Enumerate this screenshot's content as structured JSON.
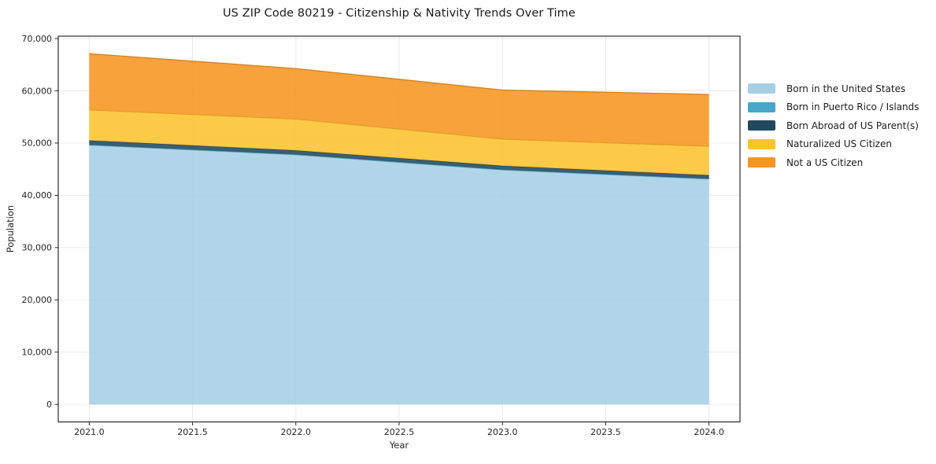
{
  "figure": {
    "background": "#ffffff",
    "text_color": "#262626"
  },
  "chart_data": {
    "type": "area",
    "stacked": true,
    "title": "US ZIP Code 80219 - Citizenship & Nativity Trends Over Time",
    "xlabel": "Year",
    "ylabel": "Population",
    "x": [
      2021,
      2022,
      2023,
      2024
    ],
    "series": [
      {
        "name": "Born in the United States",
        "color": "#a6cfe5",
        "values": [
          49600,
          47750,
          44850,
          43100
        ]
      },
      {
        "name": "Born in Puerto Rico / Islands",
        "color": "#46a7c8",
        "values": [
          100,
          100,
          100,
          100
        ]
      },
      {
        "name": "Born Abroad of US Parent(s)",
        "color": "#21495e",
        "values": [
          800,
          750,
          700,
          650
        ]
      },
      {
        "name": "Naturalized US Citizen",
        "color": "#fcc32d",
        "values": [
          5850,
          6000,
          5100,
          5550
        ]
      },
      {
        "name": "Not a US Citizen",
        "color": "#f79521",
        "values": [
          10750,
          9650,
          9400,
          9900
        ]
      }
    ],
    "totals": [
      67100,
      64250,
      60150,
      59300
    ],
    "xlim": [
      2020.85,
      2024.15
    ],
    "ylim": [
      -3355,
      70455
    ],
    "xticks": {
      "values": [
        2021.0,
        2021.5,
        2022.0,
        2022.5,
        2023.0,
        2023.5,
        2024.0
      ],
      "labels": [
        "2021.0",
        "2021.5",
        "2022.0",
        "2022.5",
        "2023.0",
        "2023.5",
        "2024.0"
      ]
    },
    "yticks": {
      "values": [
        0,
        10000,
        20000,
        30000,
        40000,
        50000,
        60000,
        70000
      ],
      "labels": [
        "0",
        "10,000",
        "20,000",
        "30,000",
        "40,000",
        "50,000",
        "60,000",
        "70,000"
      ]
    },
    "grid": true,
    "grid_color": "#e7e7e7",
    "legend_position": "right-outside"
  }
}
